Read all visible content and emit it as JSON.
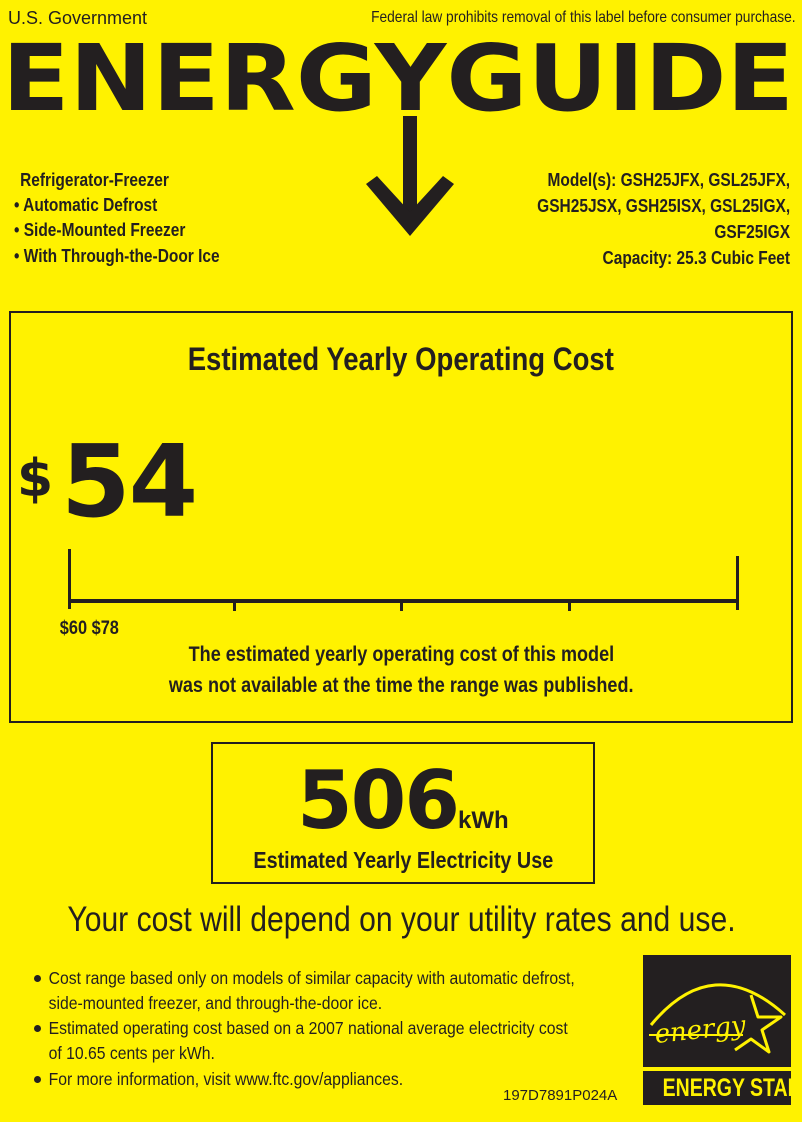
{
  "header": {
    "government": "U.S. Government",
    "notice": "Federal law prohibits removal of this label before consumer purchase.",
    "title": "ENERGYGUIDE"
  },
  "product": {
    "type": "Refrigerator-Freezer",
    "features": [
      "• Automatic Defrost",
      "• Side-Mounted Freezer",
      "• With Through-the-Door Ice"
    ],
    "models": [
      "Model(s): GSH25JFX, GSL25JFX,",
      "GSH25JSX, GSH25ISX, GSL25IGX,",
      "GSF25IGX"
    ],
    "capacity": "Capacity: 25.3 Cubic Feet"
  },
  "cost": {
    "heading": "Estimated Yearly Operating Cost",
    "currency": "$",
    "value": "54",
    "range_label": "$60 $78",
    "range_min": 60,
    "range_max": 78,
    "note": [
      "The estimated yearly operating cost of this model",
      "was not available at the time the range was published."
    ]
  },
  "electricity": {
    "value": "506",
    "unit": "kWh",
    "label": "Estimated Yearly Electricity Use"
  },
  "disclaimer": "Your cost will depend on your utility rates and use.",
  "bullets": [
    [
      "Cost range based only on models of similar capacity with automatic defrost,",
      "side-mounted freezer, and through-the-door ice."
    ],
    [
      "Estimated operating cost based on a 2007 national average electricity cost",
      "of 10.65 cents per kWh."
    ],
    [
      "For more information, visit www.ftc.gov/appliances."
    ]
  ],
  "label_code": "197D7891P024A",
  "energy_star": {
    "script": "energy",
    "label": "ENERGY STAR"
  },
  "colors": {
    "background": "#fff200",
    "ink": "#231f20"
  }
}
